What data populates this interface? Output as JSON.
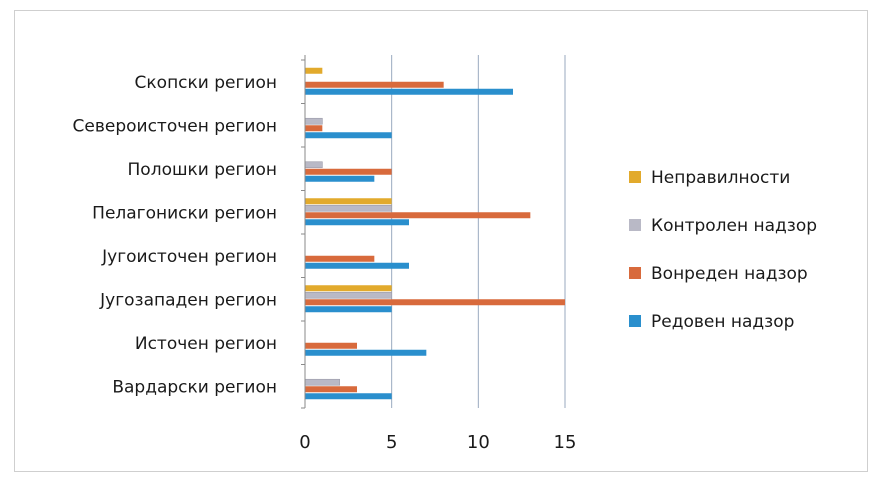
{
  "chart_data": {
    "type": "bar",
    "orientation": "horizontal",
    "categories": [
      "Скопски регион",
      "Североисточен регион",
      "Полошки регион",
      "Пелагониски регион",
      "Југоисточен регион",
      "Југозападен  регион",
      "Источен регион",
      "Вардарски регион"
    ],
    "series": [
      {
        "name": "Неправилности",
        "color": "#e2aa2c",
        "values": [
          1,
          0,
          0,
          5,
          0,
          5,
          0,
          0
        ]
      },
      {
        "name": "Контролен надзор",
        "color": "#b9b9c6",
        "values": [
          0,
          1,
          1,
          5,
          0,
          5,
          0,
          2
        ]
      },
      {
        "name": "Вонреден надзор",
        "color": "#d86a3c",
        "values": [
          8,
          1,
          5,
          13,
          4,
          15,
          3,
          3
        ]
      },
      {
        "name": "Редовен надзор",
        "color": "#2a8fcd",
        "values": [
          12,
          5,
          4,
          6,
          6,
          5,
          7,
          5
        ]
      }
    ],
    "xlim": [
      0,
      15
    ],
    "xticks": [
      "0",
      "5",
      "10",
      "15"
    ],
    "legend_order": [
      "Неправилности",
      "Контролен надзор",
      "Вонреден надзор",
      "Редовен надзор"
    ],
    "legend_position": "right",
    "grid": "vertical"
  }
}
